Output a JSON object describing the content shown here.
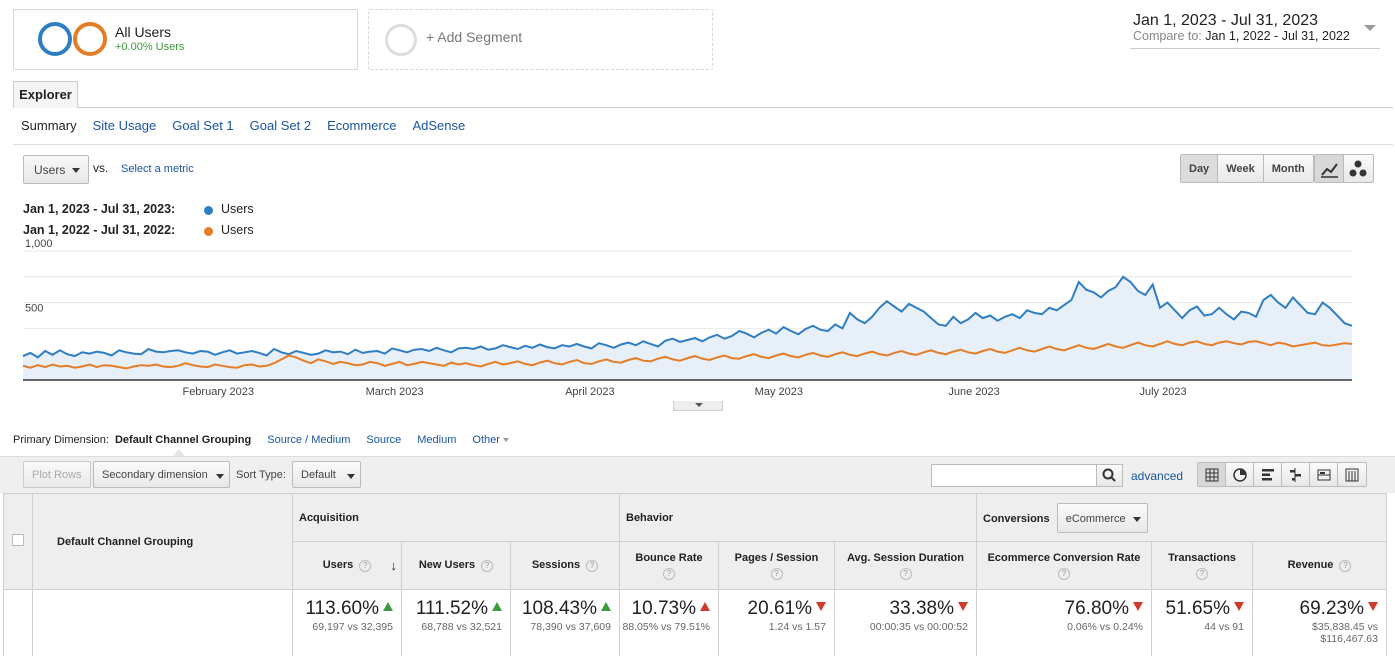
{
  "segments": {
    "all_users": {
      "title": "All Users",
      "subtitle": "+0.00% Users"
    },
    "add_label": "+ Add Segment"
  },
  "date_range": {
    "main": "Jan 1, 2023 - Jul 31, 2023",
    "compare_prefix": "Compare to:",
    "compare": "Jan 1, 2022 - Jul 31, 2022"
  },
  "tab": {
    "explorer": "Explorer"
  },
  "subtabs": [
    "Summary",
    "Site Usage",
    "Goal Set 1",
    "Goal Set 2",
    "Ecommerce",
    "AdSense"
  ],
  "metric": {
    "selected": "Users",
    "vs": "vs.",
    "select_metric": "Select a metric"
  },
  "granularity": [
    "Day",
    "Week",
    "Month"
  ],
  "legend": [
    {
      "range": "Jan 1, 2023 - Jul 31, 2023:",
      "name": "Users",
      "color": "#2f7ec4"
    },
    {
      "range": "Jan 1, 2022 - Jul 31, 2022:",
      "name": "Users",
      "color": "#e57d26"
    }
  ],
  "chart_data": {
    "type": "line",
    "y_ticks": [
      "1,000",
      "500"
    ],
    "x_labels": [
      "February 2023",
      "March 2023",
      "April 2023",
      "May 2023",
      "June 2023",
      "July 2023"
    ],
    "ylim": [
      0,
      1000
    ],
    "series": [
      {
        "name": "Users",
        "color": "#2f7ec4",
        "values": [
          185,
          210,
          175,
          225,
          195,
          230,
          200,
          185,
          215,
          205,
          220,
          210,
          190,
          230,
          215,
          205,
          200,
          240,
          220,
          215,
          225,
          230,
          215,
          205,
          225,
          220,
          195,
          215,
          230,
          205,
          215,
          225,
          210,
          190,
          240,
          215,
          200,
          225,
          210,
          195,
          205,
          230,
          215,
          220,
          200,
          235,
          210,
          220,
          225,
          205,
          245,
          230,
          215,
          235,
          240,
          225,
          250,
          230,
          215,
          245,
          250,
          240,
          260,
          235,
          245,
          270,
          255,
          240,
          265,
          250,
          275,
          255,
          245,
          270,
          260,
          280,
          260,
          245,
          285,
          270,
          250,
          275,
          290,
          270,
          300,
          280,
          260,
          305,
          320,
          295,
          310,
          325,
          300,
          330,
          350,
          320,
          340,
          380,
          360,
          330,
          365,
          390,
          360,
          410,
          380,
          355,
          395,
          420,
          390,
          380,
          430,
          400,
          520,
          470,
          440,
          490,
          560,
          610,
          570,
          530,
          590,
          560,
          530,
          480,
          430,
          420,
          490,
          440,
          470,
          520,
          480,
          500,
          460,
          490,
          510,
          480,
          540,
          520,
          510,
          560,
          540,
          580,
          620,
          760,
          700,
          680,
          640,
          690,
          720,
          800,
          760,
          690,
          660,
          740,
          560,
          600,
          540,
          480,
          540,
          570,
          500,
          510,
          560,
          510,
          470,
          530,
          520,
          490,
          620,
          660,
          600,
          560,
          640,
          580,
          520,
          510,
          600,
          560,
          500,
          440,
          420
        ],
        "fill": true
      },
      {
        "name": "Users",
        "color": "#e57d26",
        "values": [
          110,
          95,
          115,
          100,
          120,
          105,
          110,
          95,
          105,
          120,
          100,
          115,
          110,
          100,
          90,
          105,
          115,
          110,
          120,
          105,
          100,
          110,
          130,
          115,
          105,
          100,
          120,
          110,
          100,
          95,
          115,
          120,
          105,
          110,
          130,
          160,
          190,
          175,
          150,
          130,
          160,
          145,
          125,
          140,
          130,
          115,
          120,
          140,
          130,
          110,
          125,
          140,
          115,
          125,
          140,
          130,
          120,
          110,
          135,
          120,
          130,
          115,
          105,
          125,
          140,
          120,
          130,
          145,
          125,
          115,
          135,
          150,
          130,
          120,
          140,
          155,
          130,
          125,
          145,
          160,
          140,
          135,
          155,
          170,
          150,
          145,
          165,
          180,
          160,
          150,
          170,
          185,
          165,
          155,
          175,
          190,
          170,
          165,
          185,
          200,
          180,
          170,
          190,
          205,
          185,
          175,
          195,
          210,
          190,
          180,
          200,
          215,
          195,
          185,
          205,
          220,
          200,
          190,
          210,
          225,
          205,
          195,
          215,
          230,
          210,
          200,
          220,
          235,
          215,
          205,
          225,
          240,
          220,
          210,
          230,
          250,
          230,
          220,
          240,
          260,
          240,
          230,
          250,
          270,
          250,
          240,
          260,
          280,
          260,
          250,
          270,
          290,
          270,
          260,
          280,
          300,
          280,
          270,
          290,
          300,
          280,
          270,
          290,
          300,
          285,
          275,
          295,
          300,
          285,
          270,
          290,
          280,
          260,
          270,
          280,
          290,
          270,
          265,
          275,
          285,
          280
        ]
      }
    ]
  },
  "dimensions": {
    "label": "Primary Dimension:",
    "current": "Default Channel Grouping",
    "links": [
      "Source / Medium",
      "Source",
      "Medium",
      "Other"
    ]
  },
  "toolbar": {
    "plot_rows": "Plot Rows",
    "secondary": "Secondary dimension",
    "sort_label": "Sort Type:",
    "sort_value": "Default",
    "advanced": "advanced"
  },
  "table": {
    "row_header": "Default Channel Grouping",
    "groups": {
      "acquisition": "Acquisition",
      "behavior": "Behavior",
      "conversions": "Conversions",
      "conversion_select": "eCommerce"
    },
    "columns": [
      {
        "label": "Users",
        "pct": "113.60%",
        "cmp": "69,197 vs 32,395",
        "dir": "up"
      },
      {
        "label": "New Users",
        "pct": "111.52%",
        "cmp": "68,788 vs 32,521",
        "dir": "up"
      },
      {
        "label": "Sessions",
        "pct": "108.43%",
        "cmp": "78,390 vs 37,609",
        "dir": "up"
      },
      {
        "label": "Bounce Rate",
        "pct": "10.73%",
        "cmp": "88.05% vs 79.51%",
        "dir": "upred"
      },
      {
        "label": "Pages / Session",
        "pct": "20.61%",
        "cmp": "1.24 vs 1.57",
        "dir": "down"
      },
      {
        "label": "Avg. Session Duration",
        "pct": "33.38%",
        "cmp": "00:00:35 vs 00:00:52",
        "dir": "down"
      },
      {
        "label": "Ecommerce Conversion Rate",
        "pct": "76.80%",
        "cmp": "0.06% vs 0.24%",
        "dir": "down"
      },
      {
        "label": "Transactions",
        "pct": "51.65%",
        "cmp": "44 vs 91",
        "dir": "down"
      },
      {
        "label": "Revenue",
        "pct": "69.23%",
        "cmp": "$35,838.45 vs $116,467.63",
        "dir": "down"
      }
    ]
  }
}
